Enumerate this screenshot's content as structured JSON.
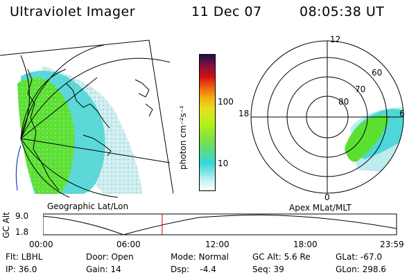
{
  "header": {
    "instrument": "Ultraviolet Imager",
    "date": "11 Dec 07",
    "time": "08:05:38 UT"
  },
  "colorbar": {
    "unit_label": "photon cm⁻²s⁻¹",
    "ticks": [
      "100",
      "10"
    ],
    "scale": "log"
  },
  "left_panel": {
    "caption": "Geographic Lat/Lon"
  },
  "right_panel": {
    "caption": "Apex MLat/MLT",
    "mlt_labels": [
      "12",
      "18",
      "6",
      "0"
    ],
    "mlat_labels": [
      "60",
      "70",
      "80"
    ]
  },
  "timeline": {
    "ylabel": "GC Alt",
    "y_ticks": [
      "9.0",
      "1.8"
    ],
    "x_ticks": [
      "00:00",
      "06:00",
      "12:00",
      "18:00",
      "23:59"
    ],
    "current_time_hours": 8.09,
    "marker_color": "#cc0000"
  },
  "info": [
    [
      "Flt: LBHL",
      "Door: Open",
      "Mode: Normal",
      "GC Alt: 5.6 Re",
      "GLat: -67.0"
    ],
    [
      "IP: 36.0",
      "Gain: 14",
      "Dsp:    -4.4",
      "Seq: 39",
      "GLon: 298.6"
    ]
  ]
}
